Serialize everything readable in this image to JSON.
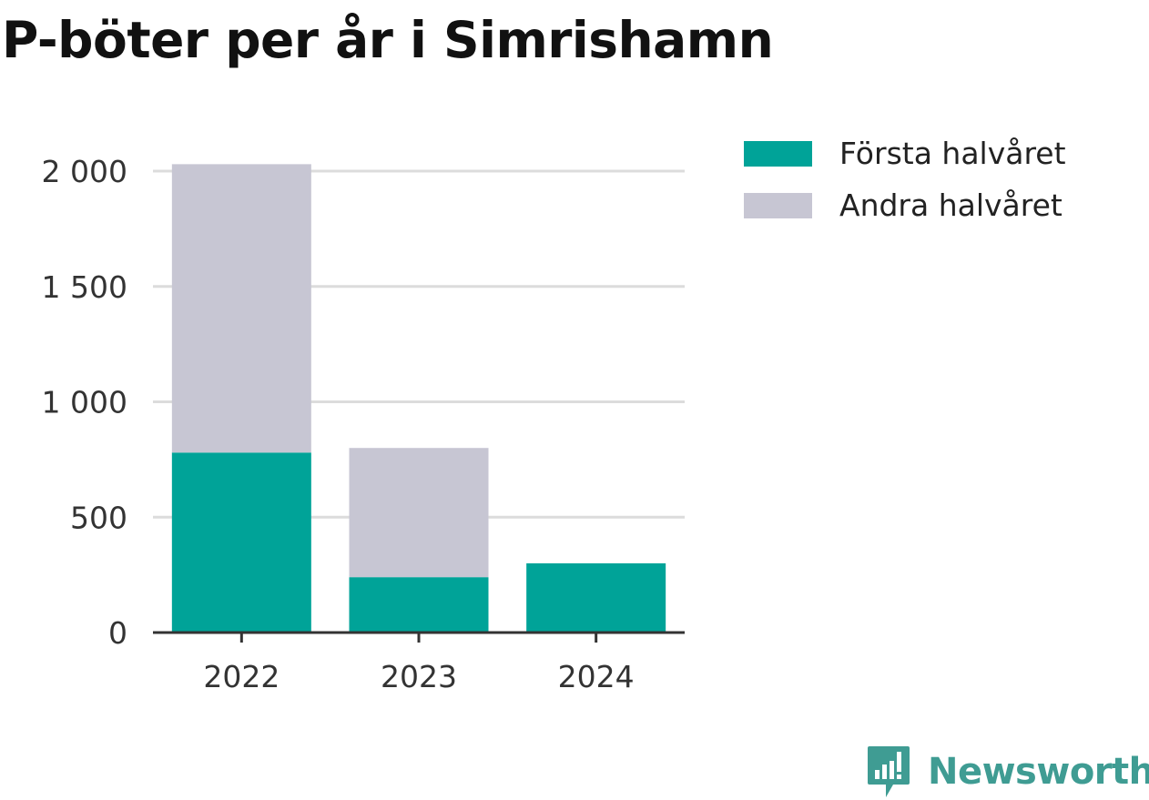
{
  "title": "P-böter per år i Simrishamn",
  "chart_data": {
    "type": "bar",
    "stacked": true,
    "categories": [
      "2022",
      "2023",
      "2024"
    ],
    "series": [
      {
        "name": "Första halvåret",
        "values": [
          780,
          240,
          300
        ],
        "color": "#00a398"
      },
      {
        "name": "Andra halvåret",
        "values": [
          1250,
          560,
          0
        ],
        "color": "#c7c6d3"
      }
    ],
    "ylim": [
      0,
      2000
    ],
    "yticks": [
      0,
      500,
      1000,
      1500,
      2000
    ],
    "ytick_labels": [
      "0",
      "500",
      "1 000",
      "1 500",
      "2 000"
    ],
    "xlabel": "",
    "ylabel": "",
    "grid": true,
    "legend_position": "right"
  },
  "brand": {
    "name": "Newsworthy",
    "icon": "newsworthy-logo-icon",
    "color": "#3f9c93"
  }
}
